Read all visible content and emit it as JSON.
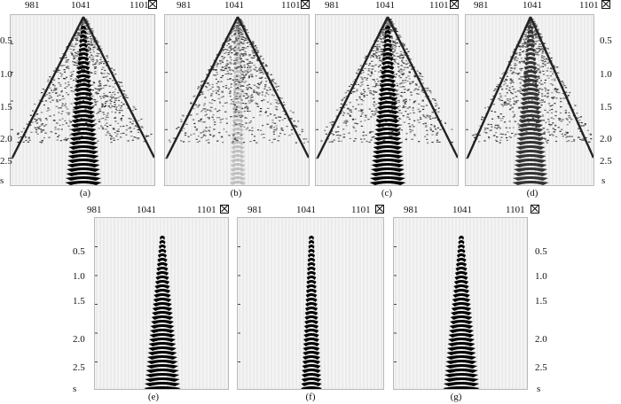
{
  "x_ticks": [
    "981",
    "1041",
    "1101"
  ],
  "x_unit_icon": "boxed-x-icon",
  "y_ticks": [
    "0.5",
    "1.0",
    "1.5",
    "2.0",
    "2.5"
  ],
  "y_unit": "s",
  "panels": [
    {
      "caption": "(a)",
      "direct_cone": true,
      "center_column": "strong"
    },
    {
      "caption": "(b)",
      "direct_cone": true,
      "center_column": "faint"
    },
    {
      "caption": "(c)",
      "direct_cone": true,
      "center_column": "strong"
    },
    {
      "caption": "(d)",
      "direct_cone": true,
      "center_column": "medium"
    },
    {
      "caption": "(e)",
      "direct_cone": false,
      "center_column": "strong"
    },
    {
      "caption": "(f)",
      "direct_cone": false,
      "center_column": "narrow"
    },
    {
      "caption": "(g)",
      "direct_cone": false,
      "center_column": "strong"
    }
  ]
}
